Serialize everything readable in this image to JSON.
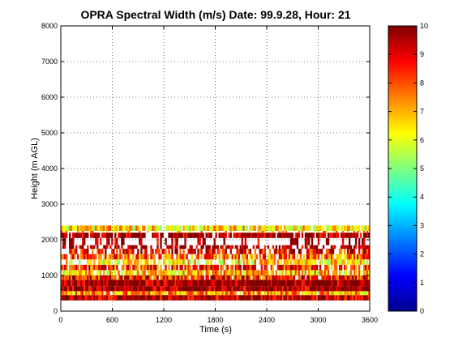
{
  "chart_data": {
    "type": "heatmap",
    "title": "OPRA Spectral Width (m/s)  Date: 99.9.28, Hour: 21",
    "xlabel": "Time (s)",
    "ylabel": "Height (m AGL)",
    "xlim": [
      0,
      3600
    ],
    "ylim": [
      0,
      8000
    ],
    "xticks": [
      "0",
      "600",
      "1200",
      "1800",
      "2400",
      "3000",
      "3600"
    ],
    "yticks": [
      "0",
      "1000",
      "2000",
      "3000",
      "4000",
      "5000",
      "6000",
      "7000",
      "8000"
    ],
    "colorbar": {
      "range": [
        0,
        10
      ],
      "ticks": [
        "0",
        "1",
        "2",
        "3",
        "4",
        "5",
        "6",
        "7",
        "8",
        "9",
        "10"
      ],
      "colormap": "jet"
    },
    "grid": true,
    "bands": [
      {
        "y_from": 300,
        "y_to": 450,
        "value": 9.5,
        "time_coverage": 1.0
      },
      {
        "y_from": 450,
        "y_to": 560,
        "value": 7.2,
        "time_coverage": 0.95
      },
      {
        "y_from": 560,
        "y_to": 700,
        "value": 9.8,
        "time_coverage": 1.0
      },
      {
        "y_from": 700,
        "y_to": 880,
        "value": 9.9,
        "time_coverage": 1.0
      },
      {
        "y_from": 880,
        "y_to": 1000,
        "value": 8.6,
        "time_coverage": 0.9
      },
      {
        "y_from": 1000,
        "y_to": 1150,
        "value": 6.8,
        "time_coverage": 0.85
      },
      {
        "y_from": 1150,
        "y_to": 1300,
        "value": 8.2,
        "time_coverage": 0.8
      },
      {
        "y_from": 1300,
        "y_to": 1450,
        "value": 6.4,
        "time_coverage": 0.7
      },
      {
        "y_from": 1450,
        "y_to": 1600,
        "value": 7.8,
        "time_coverage": 0.75
      },
      {
        "y_from": 1600,
        "y_to": 1750,
        "value": 8.8,
        "time_coverage": 0.65
      },
      {
        "y_from": 1750,
        "y_to": 1850,
        "value": 9.6,
        "time_coverage": 0.55
      },
      {
        "y_from": 1850,
        "y_to": 2050,
        "value": 9.9,
        "time_coverage": 0.25
      },
      {
        "y_from": 2050,
        "y_to": 2200,
        "value": 9.9,
        "time_coverage": 0.8
      },
      {
        "y_from": 2200,
        "y_to": 2250,
        "value": 7.0,
        "time_coverage": 0.3
      },
      {
        "y_from": 2250,
        "y_to": 2400,
        "value": 6.5,
        "time_coverage": 0.95
      }
    ]
  }
}
